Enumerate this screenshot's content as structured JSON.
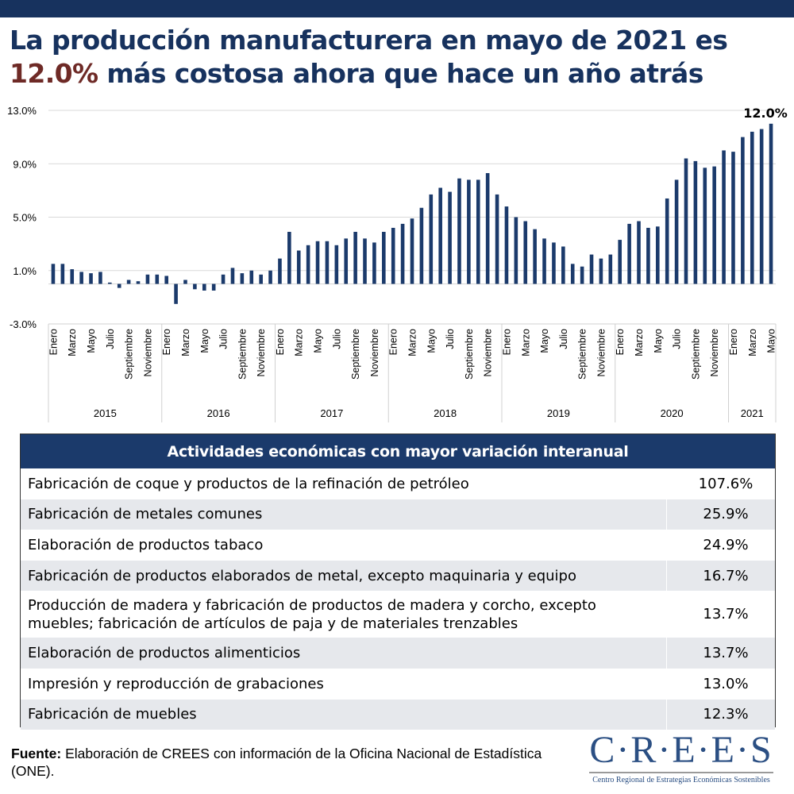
{
  "header": {
    "title_line1": "La producción manufacturera en mayo de 2021 es",
    "title_highlight": "12.0%",
    "title_line2_rest": " más costosa ahora que hace un año atrás",
    "bar_color": "#17325e",
    "highlight_color": "#6e2a26"
  },
  "chart_data": {
    "type": "bar",
    "title": "",
    "xlabel": "",
    "ylabel": "",
    "ylim": [
      -3.0,
      13.0
    ],
    "yticks": [
      -3.0,
      1.0,
      5.0,
      9.0,
      13.0
    ],
    "ytick_labels": [
      "-3.0%",
      "1.0%",
      "5.0%",
      "9.0%",
      "13.0%"
    ],
    "grid": true,
    "bar_color": "#1b3a6b",
    "years": [
      {
        "label": "2015",
        "months": 12
      },
      {
        "label": "2016",
        "months": 12
      },
      {
        "label": "2017",
        "months": 12
      },
      {
        "label": "2018",
        "months": 12
      },
      {
        "label": "2019",
        "months": 12
      },
      {
        "label": "2020",
        "months": 12
      },
      {
        "label": "2021",
        "months": 5
      }
    ],
    "month_labels": [
      "Enero",
      "",
      "Marzo",
      "",
      "Mayo",
      "",
      "Julio",
      "",
      "Septiembre",
      "",
      "Noviembre",
      ""
    ],
    "values": [
      1.5,
      1.5,
      1.1,
      0.9,
      0.8,
      0.9,
      0.1,
      -0.3,
      0.3,
      0.2,
      0.7,
      0.7,
      0.6,
      -1.5,
      0.3,
      -0.4,
      -0.5,
      -0.5,
      0.7,
      1.2,
      0.8,
      1.0,
      0.7,
      1.0,
      1.9,
      3.9,
      2.5,
      2.9,
      3.2,
      3.2,
      2.9,
      3.4,
      3.9,
      3.4,
      3.1,
      3.9,
      4.2,
      4.5,
      4.9,
      5.7,
      6.7,
      7.2,
      6.9,
      7.9,
      7.8,
      7.8,
      8.3,
      6.7,
      5.8,
      5.0,
      4.7,
      4.1,
      3.4,
      3.1,
      2.8,
      1.5,
      1.3,
      2.2,
      1.9,
      2.2,
      3.3,
      4.5,
      4.7,
      4.2,
      4.3,
      6.4,
      7.8,
      9.4,
      9.2,
      8.7,
      8.8,
      10.0,
      9.9,
      11.0,
      11.4,
      11.6,
      12.0
    ],
    "annotation": {
      "label": "12.0%",
      "target": "last"
    }
  },
  "table": {
    "header": "Actividades económicas con mayor variación interanual",
    "rows": [
      {
        "activity": "Fabricación de coque y productos de la refinación de petróleo",
        "value": "107.6%"
      },
      {
        "activity": "Fabricación de metales comunes",
        "value": "25.9%"
      },
      {
        "activity": "Elaboración de productos tabaco",
        "value": "24.9%"
      },
      {
        "activity": "Fabricación de productos elaborados de metal, excepto maquinaria y equipo",
        "value": "16.7%"
      },
      {
        "activity": "Producción de madera y fabricación de productos de madera y corcho, excepto muebles; fabricación de artículos de paja y de materiales trenzables",
        "value": "13.7%"
      },
      {
        "activity": "Elaboración de productos alimenticios",
        "value": "13.7%"
      },
      {
        "activity": "Impresión y reproducción de grabaciones",
        "value": "13.0%"
      },
      {
        "activity": "Fabricación de muebles",
        "value": "12.3%"
      }
    ]
  },
  "footer": {
    "source_label": "Fuente:",
    "source_text": " Elaboración de CREES con información de la Oficina Nacional de Estadística (ONE).",
    "logo_text": "C·R·E·E·S",
    "logo_subtitle": "Centro Regional de Estrategias Económicas Sostenibles"
  }
}
